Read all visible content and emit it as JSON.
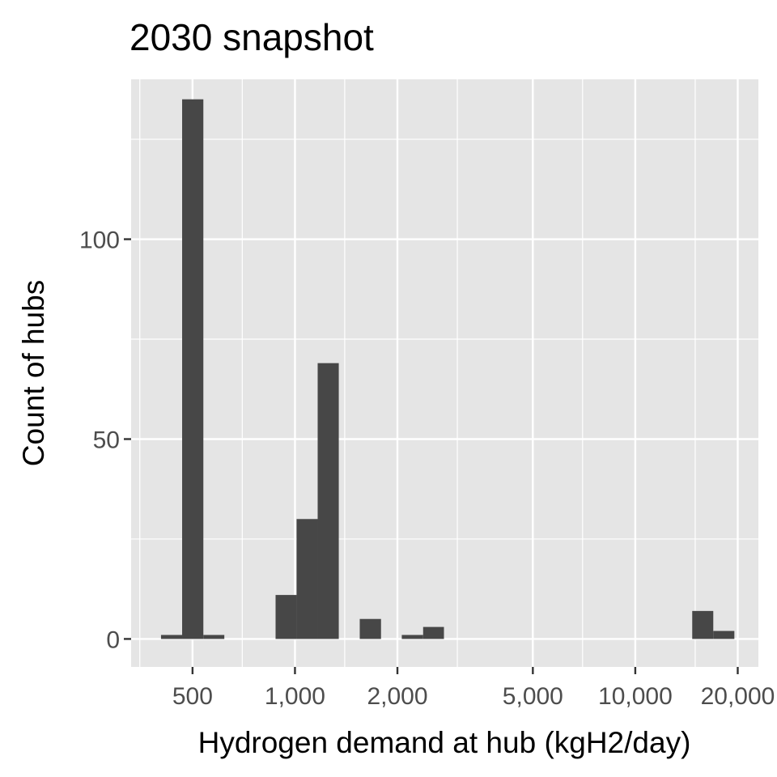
{
  "chart_data": {
    "type": "bar",
    "title": "2030 snapshot",
    "xlabel": "Hydrogen demand at hub (kgH2/day)",
    "ylabel": "Count of hubs",
    "x_scale": "log10",
    "xlim": [
      330,
      23000
    ],
    "ylim": [
      -7,
      140
    ],
    "x_ticks": [
      {
        "value": 500,
        "label": "500"
      },
      {
        "value": 1000,
        "label": "1,000"
      },
      {
        "value": 2000,
        "label": "2,000"
      },
      {
        "value": 5000,
        "label": "5,000"
      },
      {
        "value": 10000,
        "label": "10,000"
      },
      {
        "value": 20000,
        "label": "20,000"
      }
    ],
    "x_minor_breaks": [
      350,
      700,
      1400,
      3000,
      7000,
      15000
    ],
    "y_ticks": [
      {
        "value": 0,
        "label": "0"
      },
      {
        "value": 50,
        "label": "50"
      },
      {
        "value": 100,
        "label": "100"
      }
    ],
    "y_minor_breaks": [
      25,
      75,
      125
    ],
    "bars": [
      {
        "x_min": 404,
        "x_max": 466,
        "count": 1
      },
      {
        "x_min": 466,
        "x_max": 538,
        "count": 135
      },
      {
        "x_min": 538,
        "x_max": 620,
        "count": 1
      },
      {
        "x_min": 877,
        "x_max": 1011,
        "count": 11
      },
      {
        "x_min": 1011,
        "x_max": 1166,
        "count": 30
      },
      {
        "x_min": 1166,
        "x_max": 1345,
        "count": 69
      },
      {
        "x_min": 1550,
        "x_max": 1790,
        "count": 5
      },
      {
        "x_min": 2060,
        "x_max": 2380,
        "count": 1
      },
      {
        "x_min": 2380,
        "x_max": 2740,
        "count": 3
      },
      {
        "x_min": 14700,
        "x_max": 16950,
        "count": 7
      },
      {
        "x_min": 16950,
        "x_max": 19550,
        "count": 2
      }
    ],
    "grid": true,
    "panel_background": "#e5e5e5",
    "bar_color": "#474747"
  }
}
